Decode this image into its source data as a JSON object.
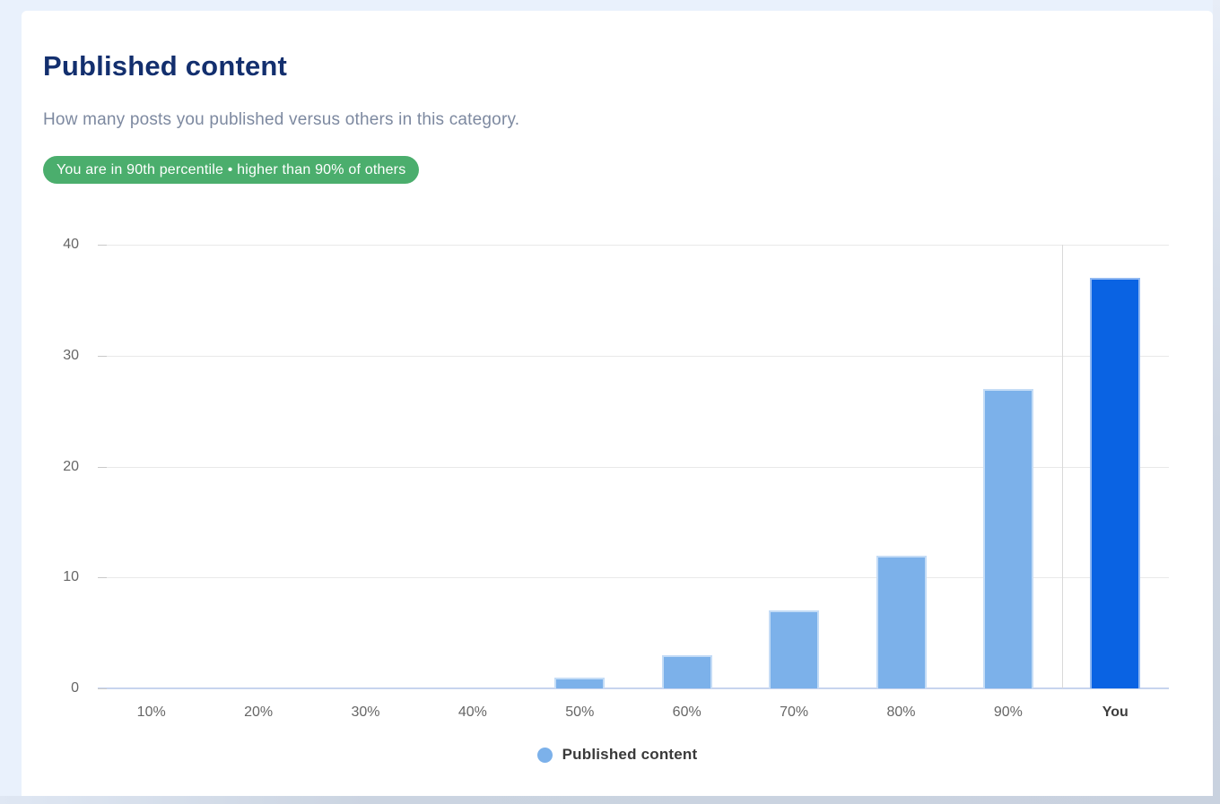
{
  "page": {
    "background": "#e9f1fc",
    "card_background": "#ffffff"
  },
  "header": {
    "title": "Published content",
    "title_color": "#132f6e",
    "subtitle": "How many posts you published versus others in this category.",
    "badge": {
      "text": "You are in 90th percentile • higher than 90% of others",
      "background": "#4bae6d",
      "text_color": "#ffffff"
    }
  },
  "chart_data": {
    "type": "bar",
    "title": "",
    "xlabel": "",
    "ylabel": "",
    "categories": [
      "10%",
      "20%",
      "30%",
      "40%",
      "50%",
      "60%",
      "70%",
      "80%",
      "90%",
      "You"
    ],
    "series": [
      {
        "name": "Published content",
        "values": [
          0,
          0,
          0,
          0,
          1,
          3,
          7,
          12,
          27,
          37
        ]
      }
    ],
    "ylim": [
      0,
      40
    ],
    "yticks": [
      0,
      10,
      20,
      30,
      40
    ],
    "grid": true,
    "highlight_category": "You",
    "separator_before_category": "You",
    "colors": {
      "default_bar": "#7cb1ea",
      "highlight_bar": "#0a63e3",
      "gridline": "#e9e9e9",
      "baseline": "#c7d4ee"
    },
    "legend": {
      "position": "bottom",
      "items": [
        {
          "label": "Published content",
          "color": "#7cb1ea"
        }
      ]
    }
  }
}
